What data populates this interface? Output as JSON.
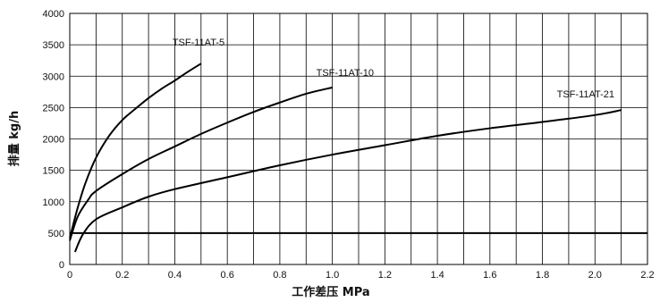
{
  "chart_data": {
    "type": "line",
    "title": "",
    "xlabel": "工作差压 MPa",
    "ylabel": "排量 kg/h",
    "xlim": [
      0,
      2.2
    ],
    "ylim": [
      0,
      4000
    ],
    "x_ticks": [
      "0",
      "0.2",
      "0.4",
      "0.6",
      "0.8",
      "1.0",
      "1.2",
      "1.4",
      "1.6",
      "1.8",
      "2.0",
      "2.2"
    ],
    "y_ticks": [
      "0",
      "500",
      "1000",
      "1500",
      "2000",
      "2500",
      "3000",
      "3500",
      "4000"
    ],
    "grid": true,
    "reference_line": {
      "y": 500
    },
    "series": [
      {
        "name": "TSF-11AT-5",
        "points": [
          [
            0.0,
            420
          ],
          [
            0.03,
            900
          ],
          [
            0.06,
            1300
          ],
          [
            0.1,
            1700
          ],
          [
            0.15,
            2050
          ],
          [
            0.2,
            2300
          ],
          [
            0.25,
            2480
          ],
          [
            0.3,
            2650
          ],
          [
            0.35,
            2800
          ],
          [
            0.4,
            2930
          ],
          [
            0.45,
            3070
          ],
          [
            0.5,
            3200
          ]
        ]
      },
      {
        "name": "TSF-11AT-10",
        "points": [
          [
            0.0,
            380
          ],
          [
            0.03,
            760
          ],
          [
            0.07,
            1030
          ],
          [
            0.1,
            1170
          ],
          [
            0.2,
            1440
          ],
          [
            0.3,
            1680
          ],
          [
            0.4,
            1880
          ],
          [
            0.5,
            2080
          ],
          [
            0.6,
            2260
          ],
          [
            0.7,
            2430
          ],
          [
            0.8,
            2580
          ],
          [
            0.9,
            2720
          ],
          [
            1.0,
            2820
          ]
        ]
      },
      {
        "name": "TSF-11AT-21",
        "points": [
          [
            0.02,
            200
          ],
          [
            0.05,
            480
          ],
          [
            0.1,
            720
          ],
          [
            0.2,
            910
          ],
          [
            0.3,
            1080
          ],
          [
            0.4,
            1200
          ],
          [
            0.6,
            1390
          ],
          [
            0.8,
            1580
          ],
          [
            1.0,
            1750
          ],
          [
            1.2,
            1900
          ],
          [
            1.4,
            2050
          ],
          [
            1.6,
            2170
          ],
          [
            1.8,
            2270
          ],
          [
            2.0,
            2380
          ],
          [
            2.1,
            2460
          ]
        ]
      }
    ]
  }
}
